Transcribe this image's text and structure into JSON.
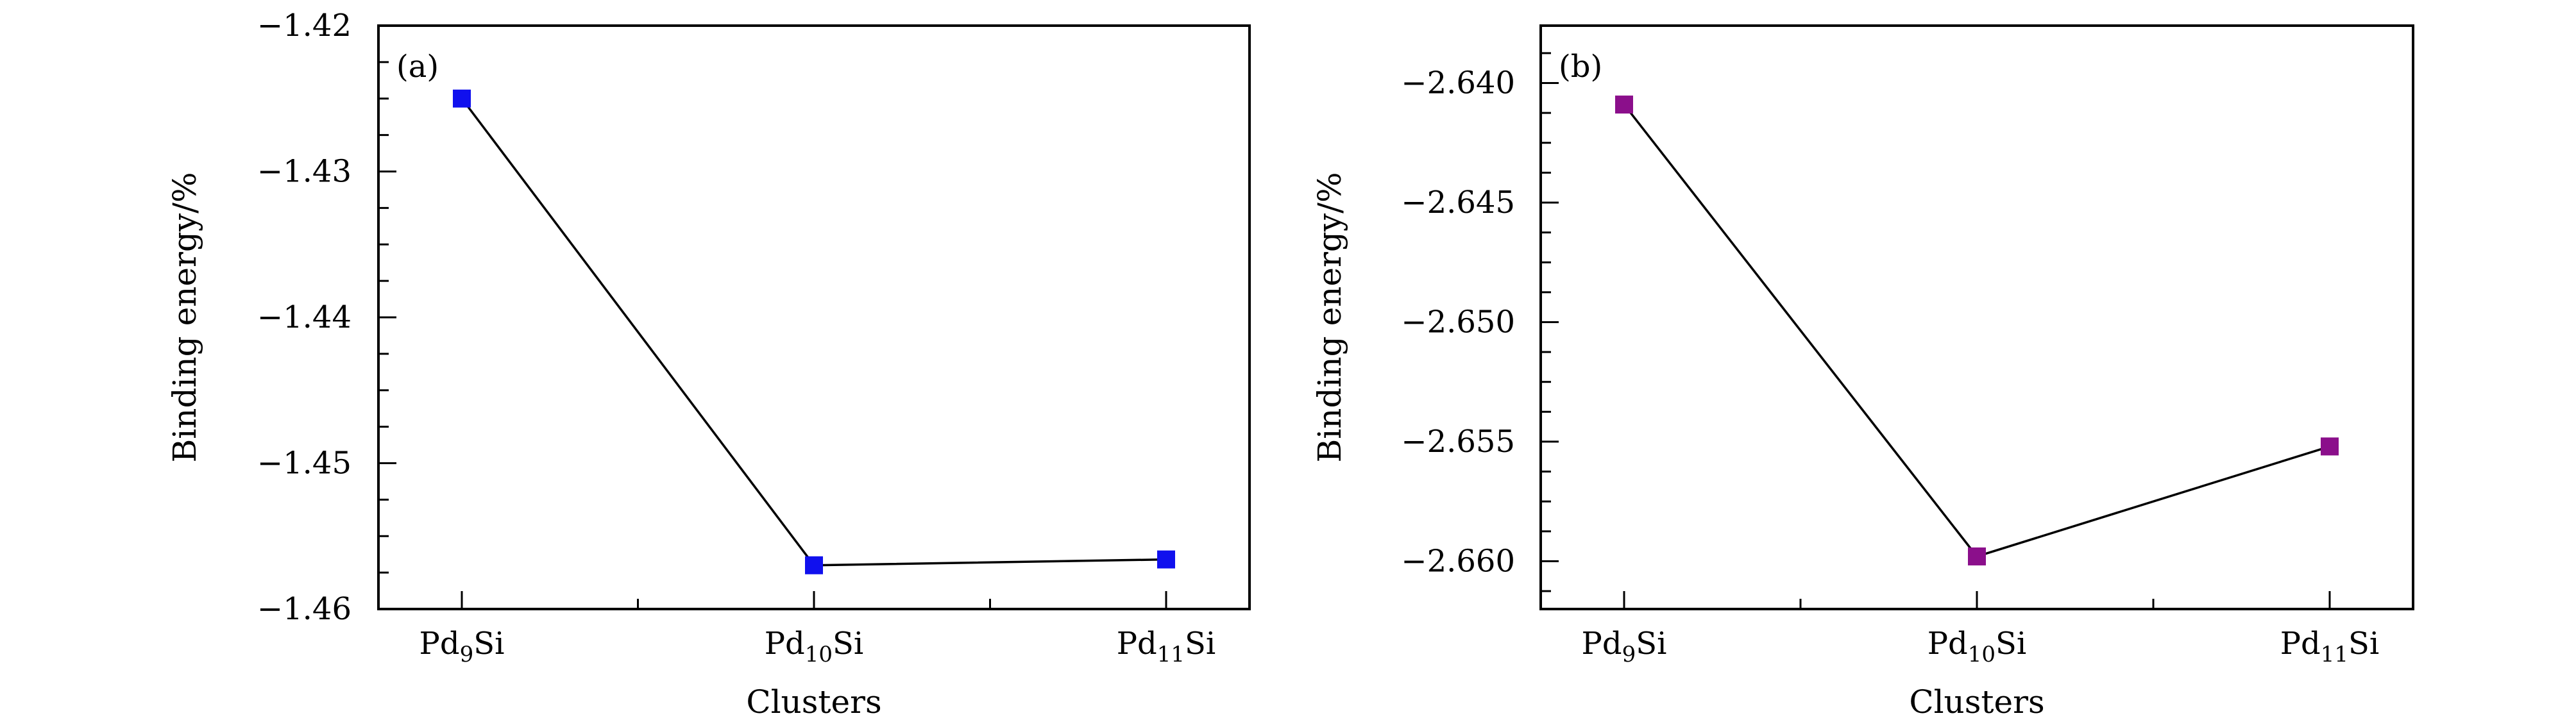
{
  "chart_data": [
    {
      "type": "line",
      "panel_label": "(a)",
      "xlabel": "Clusters",
      "ylabel": "Binding energy/%",
      "categories": [
        {
          "base": "Pd",
          "sub": "9",
          "tail": "Si"
        },
        {
          "base": "Pd",
          "sub": "10",
          "tail": "Si"
        },
        {
          "base": "Pd",
          "sub": "11",
          "tail": "Si"
        }
      ],
      "ylim": [
        -1.46,
        -1.42
      ],
      "yticks": [
        -1.46,
        -1.45,
        -1.44,
        -1.43,
        -1.42
      ],
      "ytick_labels": [
        "−1.46",
        "−1.45",
        "−1.44",
        "−1.43",
        "−1.42"
      ],
      "y_minor_step": 0.0025,
      "series": [
        {
          "values": [
            -1.425,
            -1.457,
            -1.4566
          ],
          "marker_color": "#1010ee",
          "line_color": "#000000"
        }
      ]
    },
    {
      "type": "line",
      "panel_label": "(b)",
      "xlabel": "Clusters",
      "ylabel": "Binding energy/%",
      "categories": [
        {
          "base": "Pd",
          "sub": "9",
          "tail": "Si"
        },
        {
          "base": "Pd",
          "sub": "10",
          "tail": "Si"
        },
        {
          "base": "Pd",
          "sub": "11",
          "tail": "Si"
        }
      ],
      "ylim": [
        -2.662,
        -2.6376
      ],
      "yticks": [
        -2.66,
        -2.655,
        -2.65,
        -2.645,
        -2.64
      ],
      "ytick_labels": [
        "−2.660",
        "−2.655",
        "−2.650",
        "−2.645",
        "−2.640"
      ],
      "y_minor_step": 0.00125,
      "series": [
        {
          "values": [
            -2.6409,
            -2.6598,
            -2.6552
          ],
          "marker_color": "#8b0f8b",
          "line_color": "#000000"
        }
      ]
    }
  ]
}
